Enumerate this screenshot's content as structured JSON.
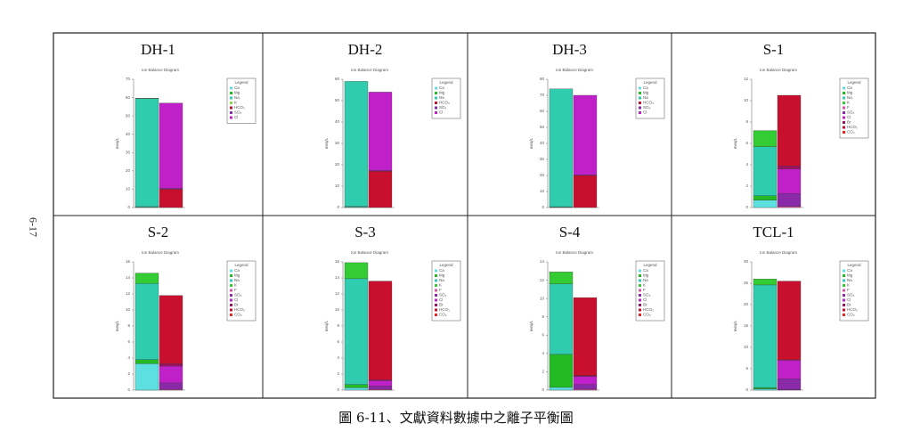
{
  "page_number": "6-17",
  "caption": "圖 6-11、文獻資料數據中之離子平衡圖",
  "chart_data": [
    {
      "type": "stacked_bar",
      "title": "DH-1",
      "subtitle": "Ion Balance Diagram",
      "ylabel": "meq/L",
      "legend_title": "Legend",
      "categories": [
        null,
        null
      ],
      "ylim": [
        0,
        70
      ],
      "yticks": [
        0,
        10,
        20,
        30,
        40,
        50,
        60,
        70
      ],
      "series": [
        {
          "name": "Ca",
          "color": "#5fe0e0",
          "values": [
            0.3,
            null
          ]
        },
        {
          "name": "Mg",
          "color": "#22bb22",
          "values": [
            0.2,
            null
          ]
        },
        {
          "name": "Na",
          "color": "#30ccb0",
          "values": [
            59,
            null
          ]
        },
        {
          "name": "K",
          "color": "#88dd44",
          "values": [
            0.2,
            null
          ]
        },
        {
          "name": "HCO₃",
          "color": "#c8102e",
          "values": [
            null,
            10
          ]
        },
        {
          "name": "SO₄",
          "color": "#8a2aa8",
          "values": [
            null,
            0.5
          ]
        },
        {
          "name": "Cl",
          "color": "#c020c8",
          "values": [
            null,
            46.5
          ]
        }
      ]
    },
    {
      "type": "stacked_bar",
      "title": "DH-2",
      "subtitle": "Ion Balance Diagram",
      "ylabel": "meq/L",
      "legend_title": "Legend",
      "categories": [
        null,
        null
      ],
      "ylim": [
        0,
        60
      ],
      "yticks": [
        0,
        10,
        20,
        30,
        40,
        50,
        60
      ],
      "series": [
        {
          "name": "Ca",
          "color": "#5fe0e0",
          "values": [
            0.3,
            null
          ]
        },
        {
          "name": "Mg",
          "color": "#22bb22",
          "values": [
            0.2,
            null
          ]
        },
        {
          "name": "Na",
          "color": "#30ccb0",
          "values": [
            58.5,
            null
          ]
        },
        {
          "name": "HCO₃",
          "color": "#c8102e",
          "values": [
            null,
            17
          ]
        },
        {
          "name": "SO₄",
          "color": "#8a2aa8",
          "values": [
            null,
            0.3
          ]
        },
        {
          "name": "Cl",
          "color": "#c020c8",
          "values": [
            null,
            36.7
          ]
        }
      ]
    },
    {
      "type": "stacked_bar",
      "title": "DH-3",
      "subtitle": "Ion Balance Diagram",
      "ylabel": "meq/L",
      "legend_title": "Legend",
      "categories": [
        null,
        null
      ],
      "ylim": [
        0,
        80
      ],
      "yticks": [
        0,
        10,
        20,
        30,
        40,
        50,
        60,
        70,
        80
      ],
      "series": [
        {
          "name": "Ca",
          "color": "#5fe0e0",
          "values": [
            0.3,
            null
          ]
        },
        {
          "name": "Mg",
          "color": "#22bb22",
          "values": [
            0.2,
            null
          ]
        },
        {
          "name": "Na",
          "color": "#30ccb0",
          "values": [
            73.5,
            null
          ]
        },
        {
          "name": "HCO₃",
          "color": "#c8102e",
          "values": [
            null,
            20
          ]
        },
        {
          "name": "SO₄",
          "color": "#8a2aa8",
          "values": [
            null,
            0.3
          ]
        },
        {
          "name": "Cl",
          "color": "#c020c8",
          "values": [
            null,
            49.7
          ]
        }
      ]
    },
    {
      "type": "stacked_bar",
      "title": "S-1",
      "subtitle": "Ion Balance Diagram",
      "ylabel": "meq/L",
      "legend_title": "Legend",
      "categories": [
        null,
        null
      ],
      "ylim": [
        0,
        12
      ],
      "yticks": [
        0,
        2,
        4,
        6,
        8,
        10,
        12
      ],
      "series": [
        {
          "name": "Ca",
          "color": "#5fe0e0",
          "values": [
            0.7,
            null
          ]
        },
        {
          "name": "Mg",
          "color": "#22bb22",
          "values": [
            0.4,
            null
          ]
        },
        {
          "name": "Na",
          "color": "#30ccb0",
          "values": [
            4.6,
            null
          ]
        },
        {
          "name": "K",
          "color": "#33cc33",
          "values": [
            1.5,
            null
          ]
        },
        {
          "name": "F",
          "color": "#e050a0",
          "values": [
            null,
            0.1
          ]
        },
        {
          "name": "SO₄",
          "color": "#8a2aa8",
          "values": [
            null,
            1.2
          ]
        },
        {
          "name": "Cl",
          "color": "#c020c8",
          "values": [
            null,
            2.3
          ]
        },
        {
          "name": "Br",
          "color": "#a01060",
          "values": [
            null,
            0.3
          ]
        },
        {
          "name": "HCO₃",
          "color": "#c8102e",
          "values": [
            null,
            6.6
          ]
        },
        {
          "name": "CO₃",
          "color": "#ee2222",
          "values": [
            null,
            0
          ]
        }
      ]
    },
    {
      "type": "stacked_bar",
      "title": "S-2",
      "subtitle": "Ion Balance Diagram",
      "ylabel": "meq/L",
      "legend_title": "Legend",
      "categories": [
        null,
        null
      ],
      "ylim": [
        0,
        16
      ],
      "yticks": [
        0,
        2,
        4,
        6,
        8,
        10,
        12,
        14,
        16
      ],
      "series": [
        {
          "name": "Ca",
          "color": "#5fe0e0",
          "values": [
            3.3,
            null
          ]
        },
        {
          "name": "Mg",
          "color": "#22bb22",
          "values": [
            0.5,
            null
          ]
        },
        {
          "name": "Na",
          "color": "#30ccb0",
          "values": [
            9.5,
            null
          ]
        },
        {
          "name": "K",
          "color": "#33cc33",
          "values": [
            1.3,
            null
          ]
        },
        {
          "name": "F",
          "color": "#e050a0",
          "values": [
            null,
            0.1
          ]
        },
        {
          "name": "SO₄",
          "color": "#8a2aa8",
          "values": [
            null,
            0.8
          ]
        },
        {
          "name": "Cl",
          "color": "#c020c8",
          "values": [
            null,
            2.1
          ]
        },
        {
          "name": "Br",
          "color": "#a01060",
          "values": [
            null,
            0.3
          ]
        },
        {
          "name": "HCO₃",
          "color": "#c8102e",
          "values": [
            null,
            8.5
          ]
        },
        {
          "name": "CO₃",
          "color": "#ee2222",
          "values": [
            null,
            0
          ]
        }
      ]
    },
    {
      "type": "stacked_bar",
      "title": "S-3",
      "subtitle": "Ion Balance Diagram",
      "ylabel": "meq/L",
      "legend_title": "Legend",
      "categories": [
        null,
        null
      ],
      "ylim": [
        0,
        16
      ],
      "yticks": [
        0,
        2,
        4,
        6,
        8,
        10,
        12,
        14,
        16
      ],
      "series": [
        {
          "name": "Ca",
          "color": "#5fe0e0",
          "values": [
            0.3,
            null
          ]
        },
        {
          "name": "Mg",
          "color": "#22bb22",
          "values": [
            0.4,
            null
          ]
        },
        {
          "name": "Na",
          "color": "#30ccb0",
          "values": [
            13.2,
            null
          ]
        },
        {
          "name": "K",
          "color": "#33cc33",
          "values": [
            2,
            null
          ]
        },
        {
          "name": "F",
          "color": "#e050a0",
          "values": [
            null,
            0.1
          ]
        },
        {
          "name": "SO₄",
          "color": "#8a2aa8",
          "values": [
            null,
            0.4
          ]
        },
        {
          "name": "Cl",
          "color": "#c020c8",
          "values": [
            null,
            0.7
          ]
        },
        {
          "name": "Br",
          "color": "#a01060",
          "values": [
            null,
            0.1
          ]
        },
        {
          "name": "HCO₃",
          "color": "#c8102e",
          "values": [
            null,
            12.3
          ]
        },
        {
          "name": "CO₃",
          "color": "#ee2222",
          "values": [
            null,
            0
          ]
        }
      ]
    },
    {
      "type": "stacked_bar",
      "title": "S-4",
      "subtitle": "Ion Balance Diagram",
      "ylabel": "meq/L",
      "legend_title": "Legend",
      "categories": [
        null,
        null
      ],
      "ylim": [
        0,
        14
      ],
      "yticks": [
        0,
        2,
        4,
        6,
        8,
        10,
        12,
        14
      ],
      "series": [
        {
          "name": "Ca",
          "color": "#5fe0e0",
          "values": [
            0.3,
            null
          ]
        },
        {
          "name": "Mg",
          "color": "#22bb22",
          "values": [
            3.6,
            null
          ]
        },
        {
          "name": "Na",
          "color": "#30ccb0",
          "values": [
            7.7,
            null
          ]
        },
        {
          "name": "K",
          "color": "#33cc33",
          "values": [
            1.3,
            null
          ]
        },
        {
          "name": "F",
          "color": "#e050a0",
          "values": [
            null,
            0.1
          ]
        },
        {
          "name": "SO₄",
          "color": "#8a2aa8",
          "values": [
            null,
            0.5
          ]
        },
        {
          "name": "Cl",
          "color": "#c020c8",
          "values": [
            null,
            0.9
          ]
        },
        {
          "name": "Br",
          "color": "#a01060",
          "values": [
            null,
            0.1
          ]
        },
        {
          "name": "HCO₃",
          "color": "#c8102e",
          "values": [
            null,
            8.5
          ]
        },
        {
          "name": "CO₃",
          "color": "#ee2222",
          "values": [
            null,
            0
          ]
        }
      ]
    },
    {
      "type": "stacked_bar",
      "title": "TCL-1",
      "subtitle": "Ion Balance Diagram",
      "ylabel": "meq/L",
      "legend_title": "Legend",
      "categories": [
        null,
        null
      ],
      "ylim": [
        0,
        30
      ],
      "yticks": [
        0,
        5,
        10,
        15,
        20,
        25,
        30
      ],
      "series": [
        {
          "name": "Ca",
          "color": "#5fe0e0",
          "values": [
            0.3,
            null
          ]
        },
        {
          "name": "Mg",
          "color": "#22bb22",
          "values": [
            0.3,
            null
          ]
        },
        {
          "name": "Na",
          "color": "#30ccb0",
          "values": [
            24,
            null
          ]
        },
        {
          "name": "K",
          "color": "#33cc33",
          "values": [
            1.4,
            null
          ]
        },
        {
          "name": "F",
          "color": "#e050a0",
          "values": [
            null,
            0.1
          ]
        },
        {
          "name": "SO₄",
          "color": "#8a2aa8",
          "values": [
            null,
            2.5
          ]
        },
        {
          "name": "Cl",
          "color": "#c020c8",
          "values": [
            null,
            4.4
          ]
        },
        {
          "name": "Br",
          "color": "#a01060",
          "values": [
            null,
            0.1
          ]
        },
        {
          "name": "HCO₃",
          "color": "#c8102e",
          "values": [
            null,
            18.4
          ]
        },
        {
          "name": "CO₃",
          "color": "#ee2222",
          "values": [
            null,
            0
          ]
        }
      ]
    }
  ]
}
